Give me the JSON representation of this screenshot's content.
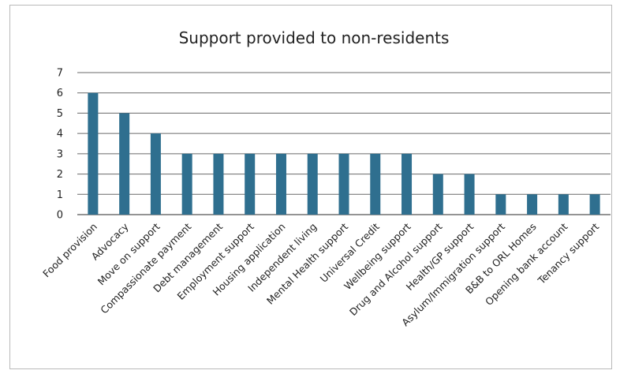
{
  "chart_data": {
    "type": "bar",
    "title": "Support provided to non-residents",
    "xlabel": "",
    "ylabel": "",
    "ylim": [
      0,
      7
    ],
    "yticks": [
      0,
      1,
      2,
      3,
      4,
      5,
      6,
      7
    ],
    "grid": true,
    "legend": "none",
    "bar_color": "#2f6f8f",
    "categories": [
      "Food provision",
      "Advocacy",
      "Move on support",
      "Compassionate payment",
      "Debt management",
      "Employment support",
      "Housing application",
      "Independent living",
      "Mental Health support",
      "Universal Credit",
      "Wellbeing support",
      "Drug and Alcohol support",
      "Health/GP support",
      "Asylum/Immigration support",
      "B&B to ORL Homes",
      "Opening bank account",
      "Tenancy support"
    ],
    "values": [
      6,
      5,
      4,
      3,
      3,
      3,
      3,
      3,
      3,
      3,
      3,
      2,
      2,
      1,
      1,
      1,
      1
    ]
  }
}
